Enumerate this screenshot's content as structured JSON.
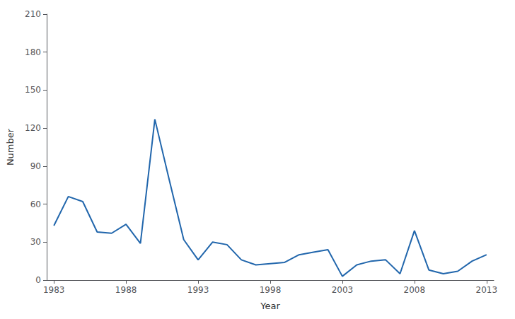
{
  "chart_data": {
    "type": "line",
    "x": [
      1983,
      1984,
      1985,
      1986,
      1987,
      1988,
      1989,
      1990,
      1991,
      1992,
      1993,
      1994,
      1995,
      1996,
      1997,
      1998,
      1999,
      2000,
      2001,
      2002,
      2003,
      2004,
      2005,
      2006,
      2007,
      2008,
      2009,
      2010,
      2011,
      2012,
      2013
    ],
    "values": [
      43,
      66,
      62,
      38,
      37,
      44,
      29,
      127,
      79,
      32,
      16,
      30,
      28,
      16,
      12,
      13,
      14,
      20,
      22,
      24,
      3,
      12,
      15,
      16,
      5,
      39,
      8,
      5,
      7,
      15,
      20
    ],
    "color": "#2166ac",
    "xlabel": "Year",
    "ylabel": "Number",
    "xlim": [
      1982.5,
      2013.5
    ],
    "ylim": [
      0,
      210
    ],
    "xticks": [
      1983,
      1988,
      1993,
      1998,
      2003,
      2008,
      2013
    ],
    "yticks": [
      0,
      30,
      60,
      90,
      120,
      150,
      180,
      210
    ],
    "grid": false
  }
}
